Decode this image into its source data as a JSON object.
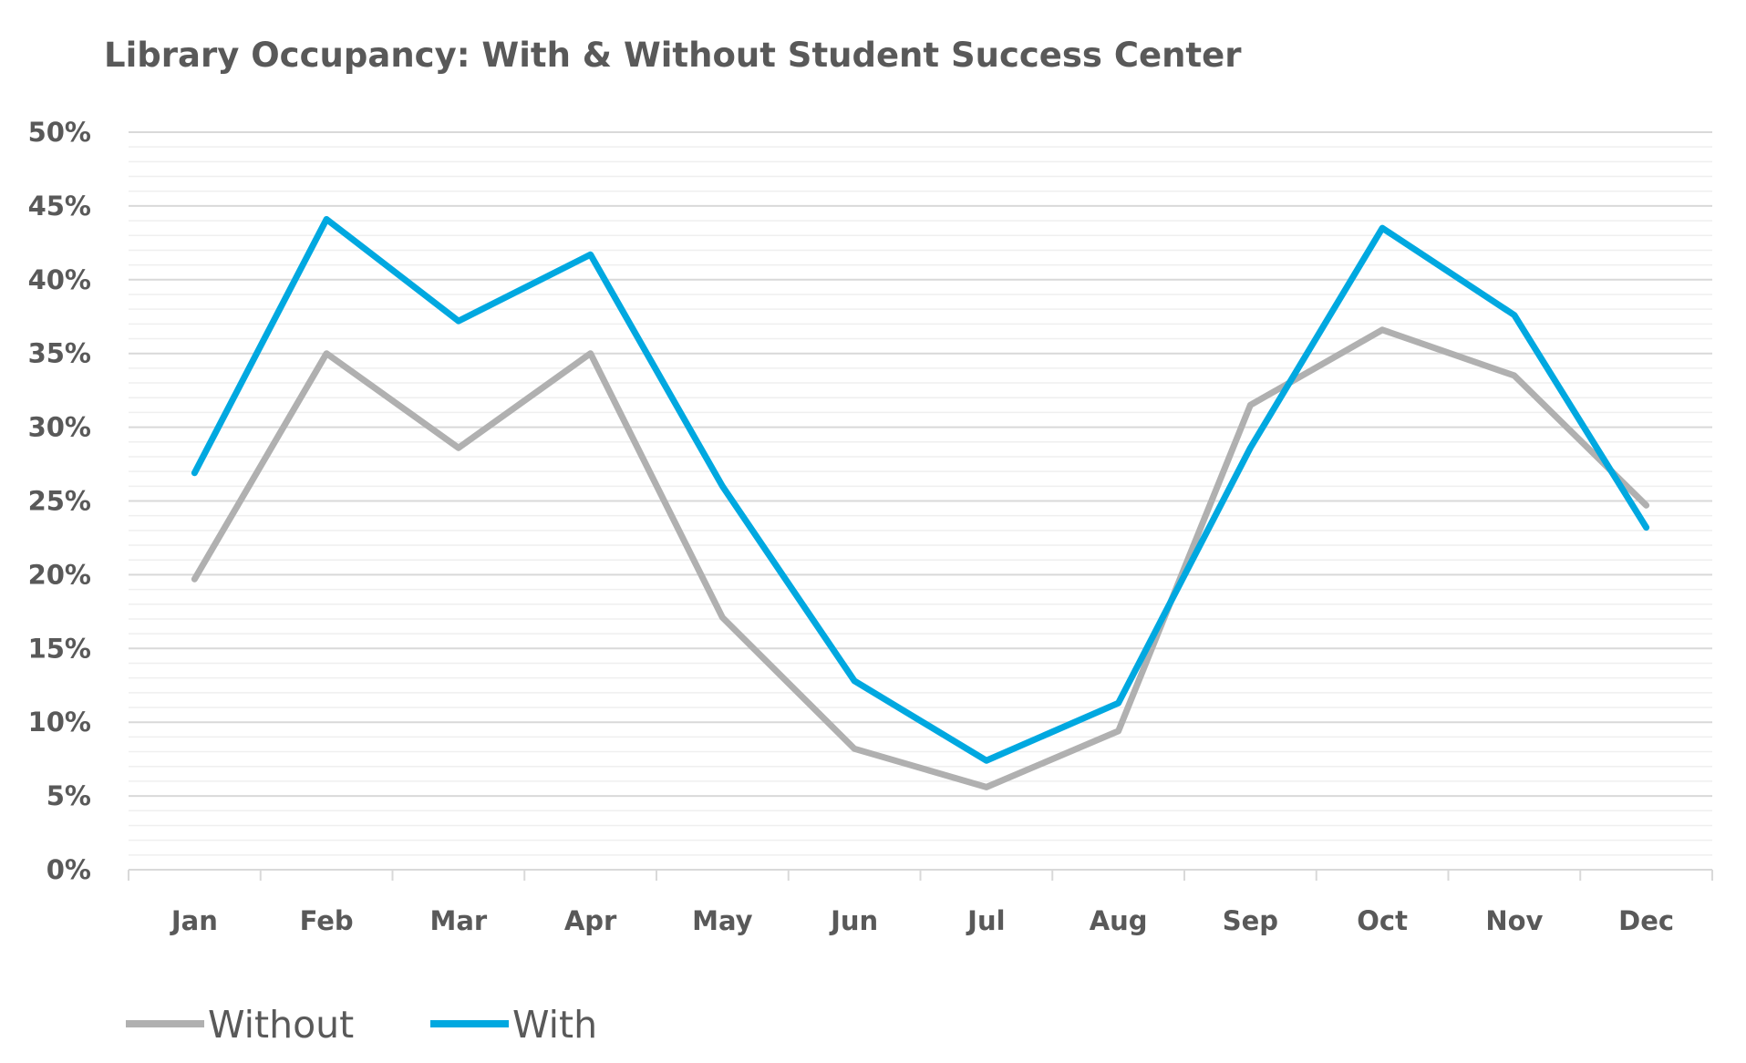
{
  "chart_data": {
    "type": "line",
    "title": "Library Occupancy: With & Without Student Success Center",
    "xlabel": "",
    "ylabel": "",
    "categories": [
      "Jan",
      "Feb",
      "Mar",
      "Apr",
      "May",
      "Jun",
      "Jul",
      "Aug",
      "Sep",
      "Oct",
      "Nov",
      "Dec"
    ],
    "ylim": [
      0,
      50
    ],
    "yticks": [
      "0%",
      "5%",
      "10%",
      "15%",
      "20%",
      "25%",
      "30%",
      "35%",
      "40%",
      "45%",
      "50%"
    ],
    "grid": {
      "major": true,
      "minor": true
    },
    "legend": "bottom-left",
    "series": [
      {
        "name": "Without",
        "color": "#b0b0b0",
        "values": [
          19.7,
          35.0,
          28.6,
          35.0,
          17.1,
          8.2,
          5.6,
          9.4,
          31.5,
          36.6,
          33.5,
          24.7
        ]
      },
      {
        "name": "With",
        "color": "#00a8e0",
        "values": [
          26.9,
          44.1,
          37.2,
          41.7,
          26.0,
          12.8,
          7.4,
          11.3,
          28.6,
          43.5,
          37.6,
          23.2
        ]
      }
    ]
  }
}
